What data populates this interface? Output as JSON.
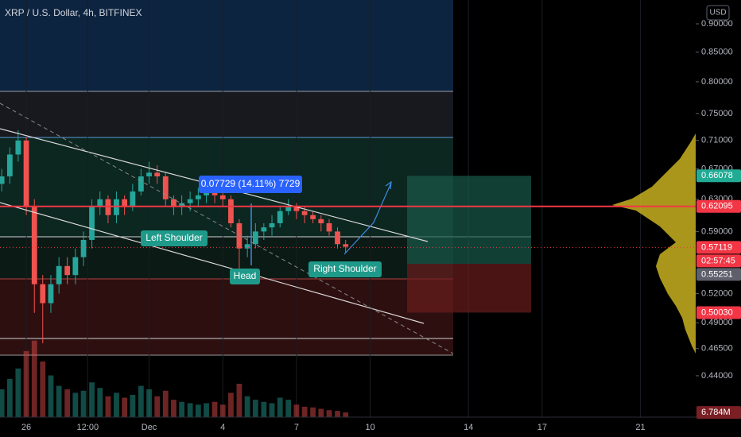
{
  "header": {
    "title": "XRP / U.S. Dollar, 4h, BITFINEX",
    "currency": "USD"
  },
  "annotations": {
    "measure": "0.07729 (14.11%) 7729",
    "left_shoulder": "Left Shoulder",
    "head": "Head",
    "right_shoulder": "Right Shoulder"
  },
  "chart_data": {
    "type": "candlestick",
    "log_scale": true,
    "up_color": "#26a69a",
    "down_color": "#ef5350",
    "x": [
      -1,
      -0.67,
      -0.33,
      0,
      0.33,
      0.67,
      1,
      1.33,
      1.67,
      2,
      2.33,
      2.67,
      3,
      3.33,
      3.67,
      4,
      4.33,
      4.67,
      5,
      5.33,
      5.67,
      6,
      6.33,
      6.67,
      7,
      7.33,
      7.67,
      8,
      8.33,
      8.67,
      9,
      9.33,
      9.67,
      10,
      10.33,
      10.67,
      11,
      11.33,
      11.67,
      12,
      12.33,
      12.67,
      13
    ],
    "open": [
      0.65,
      0.66,
      0.69,
      0.71,
      0.62,
      0.53,
      0.51,
      0.53,
      0.55,
      0.54,
      0.56,
      0.58,
      0.62,
      0.63,
      0.61,
      0.63,
      0.62,
      0.64,
      0.66,
      0.665,
      0.66,
      0.63,
      0.62,
      0.625,
      0.63,
      0.635,
      0.64,
      0.635,
      0.63,
      0.6,
      0.57,
      0.575,
      0.59,
      0.595,
      0.6,
      0.615,
      0.62,
      0.615,
      0.61,
      0.605,
      0.6,
      0.59,
      0.575
    ],
    "high": [
      0.67,
      0.7,
      0.725,
      0.715,
      0.63,
      0.54,
      0.54,
      0.56,
      0.56,
      0.57,
      0.59,
      0.63,
      0.64,
      0.635,
      0.64,
      0.635,
      0.65,
      0.67,
      0.68,
      0.675,
      0.665,
      0.635,
      0.635,
      0.64,
      0.645,
      0.65,
      0.645,
      0.64,
      0.635,
      0.605,
      0.585,
      0.6,
      0.6,
      0.61,
      0.62,
      0.63,
      0.625,
      0.62,
      0.615,
      0.61,
      0.605,
      0.595,
      0.58
    ],
    "low": [
      0.64,
      0.65,
      0.68,
      0.61,
      0.5,
      0.47,
      0.5,
      0.52,
      0.53,
      0.53,
      0.55,
      0.57,
      0.61,
      0.6,
      0.6,
      0.61,
      0.615,
      0.635,
      0.65,
      0.65,
      0.62,
      0.61,
      0.61,
      0.615,
      0.62,
      0.625,
      0.625,
      0.62,
      0.595,
      0.545,
      0.56,
      0.57,
      0.58,
      0.585,
      0.595,
      0.61,
      0.605,
      0.6,
      0.6,
      0.59,
      0.585,
      0.57,
      0.565
    ],
    "close": [
      0.66,
      0.69,
      0.71,
      0.62,
      0.53,
      0.51,
      0.53,
      0.55,
      0.54,
      0.56,
      0.58,
      0.62,
      0.63,
      0.61,
      0.63,
      0.62,
      0.64,
      0.66,
      0.665,
      0.66,
      0.63,
      0.62,
      0.625,
      0.63,
      0.635,
      0.64,
      0.635,
      0.63,
      0.6,
      0.57,
      0.575,
      0.59,
      0.595,
      0.6,
      0.615,
      0.62,
      0.615,
      0.61,
      0.605,
      0.6,
      0.59,
      0.575,
      0.572
    ],
    "volume": [
      40,
      55,
      70,
      95,
      110,
      80,
      60,
      45,
      40,
      35,
      38,
      50,
      42,
      30,
      35,
      28,
      32,
      45,
      40,
      30,
      38,
      25,
      22,
      20,
      18,
      20,
      22,
      18,
      35,
      48,
      30,
      25,
      22,
      20,
      28,
      25,
      18,
      15,
      14,
      12,
      10,
      9,
      6.784
    ],
    "volume_ylim": [
      0,
      120
    ],
    "last_volume": {
      "value": 6.784,
      "label": "6.784M"
    },
    "xlim": [
      -1.07,
      27.25
    ],
    "ylim": [
      0.4045,
      0.9447
    ],
    "xticks": [
      {
        "value": 0,
        "label": "26"
      },
      {
        "value": 2.5,
        "label": "12:00"
      },
      {
        "value": 5,
        "label": "Dec"
      },
      {
        "value": 8,
        "label": "4"
      },
      {
        "value": 11,
        "label": "7"
      },
      {
        "value": 14,
        "label": "10"
      },
      {
        "value": 18,
        "label": "14"
      },
      {
        "value": 21,
        "label": "17"
      },
      {
        "value": 25,
        "label": "21"
      }
    ],
    "yticks": [
      {
        "value": 0.9,
        "label": "0.90000"
      },
      {
        "value": 0.85,
        "label": "0.85000"
      },
      {
        "value": 0.8,
        "label": "0.80000"
      },
      {
        "value": 0.75,
        "label": "0.75000"
      },
      {
        "value": 0.71,
        "label": "0.71000"
      },
      {
        "value": 0.67,
        "label": "0.67000"
      },
      {
        "value": 0.63,
        "label": "0.63000"
      },
      {
        "value": 0.59,
        "label": "0.59000"
      },
      {
        "value": 0.52,
        "label": "0.52000"
      },
      {
        "value": 0.49,
        "label": "0.49000"
      },
      {
        "value": 0.465,
        "label": "0.46500"
      },
      {
        "value": 0.44,
        "label": "0.44000"
      }
    ],
    "price_markers": [
      {
        "value": 0.66078,
        "label": "0.66078",
        "color": "#22ab94"
      },
      {
        "value": 0.62095,
        "label": "0.62095",
        "color": "#f23645"
      },
      {
        "value": 0.57119,
        "label": "0.57119",
        "color": "#f23645"
      },
      {
        "value": 0.55251,
        "label": "0.55251",
        "color": "#5d606b"
      },
      {
        "value": 0.5003,
        "label": "0.50030",
        "color": "#f23645"
      }
    ],
    "countdown": "02:57:45"
  }
}
